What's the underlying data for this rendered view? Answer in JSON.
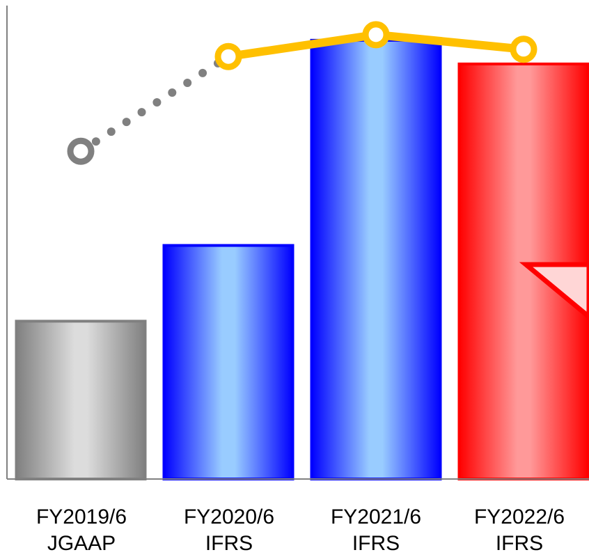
{
  "chart_data": {
    "type": "bar",
    "categories": [
      {
        "line1": "FY2019/6",
        "line2": "JGAAP"
      },
      {
        "line1": "FY2020/6",
        "line2": "IFRS"
      },
      {
        "line1": "FY2021/6",
        "line2": "IFRS"
      },
      {
        "line1": "FY2022/6",
        "line2": "IFRS"
      }
    ],
    "bars": {
      "values": [
        100,
        148,
        278,
        263
      ],
      "colors": [
        "#808080",
        "#0000ff",
        "#0000ff",
        "#ff0000"
      ],
      "highlight_colors": [
        "#dcdcdc",
        "#99ccff",
        "#99ccff",
        "#ff9999"
      ]
    },
    "line": {
      "values": [
        85,
        98,
        101,
        99
      ],
      "colors": [
        "#808080",
        "#ffc000",
        "#ffc000",
        "#ffc000"
      ],
      "dotted_segments": [
        0
      ]
    },
    "bar_ylim": [
      0,
      300
    ],
    "line_ylim": [
      40,
      105
    ],
    "grid": false,
    "legend": "none"
  }
}
